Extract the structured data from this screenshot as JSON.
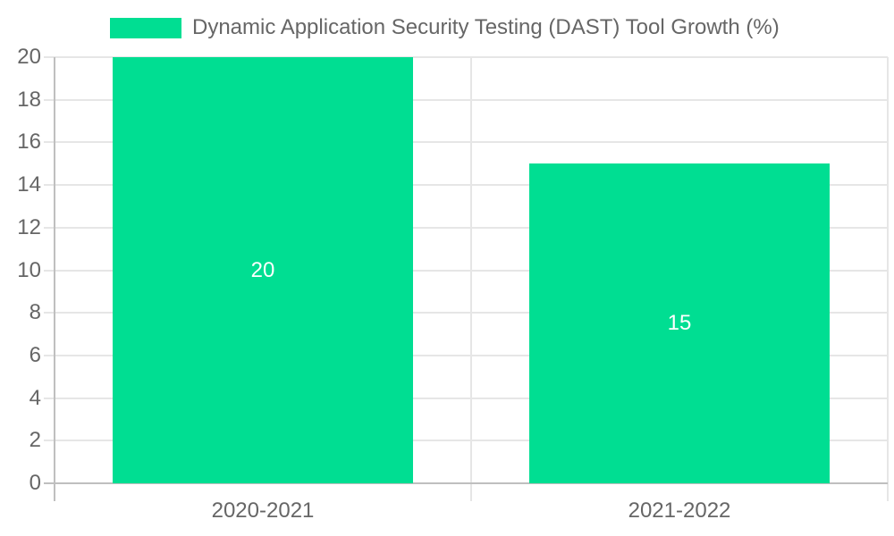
{
  "chart_data": {
    "type": "bar",
    "title": "",
    "legend": {
      "position": "top",
      "entries": [
        {
          "label": "Dynamic Application Security Testing (DAST) Tool Growth (%)",
          "color": "#00de92"
        }
      ]
    },
    "categories": [
      "2020-2021",
      "2021-2022"
    ],
    "series": [
      {
        "name": "Dynamic Application Security Testing (DAST) Tool Growth (%)",
        "values": [
          20,
          15
        ],
        "data_labels": [
          "20",
          "15"
        ]
      }
    ],
    "xlabel": "",
    "ylabel": "",
    "ylim": [
      0,
      20
    ],
    "yticks": [
      0,
      2,
      4,
      6,
      8,
      10,
      12,
      14,
      16,
      18,
      20
    ],
    "grid": true,
    "colors": {
      "bar": "#00de92",
      "axis_text": "#666666",
      "gridline": "#e6e6e6",
      "zero_line": "#bfbfbf",
      "value_label": "#ffffff",
      "background": "#ffffff"
    }
  }
}
